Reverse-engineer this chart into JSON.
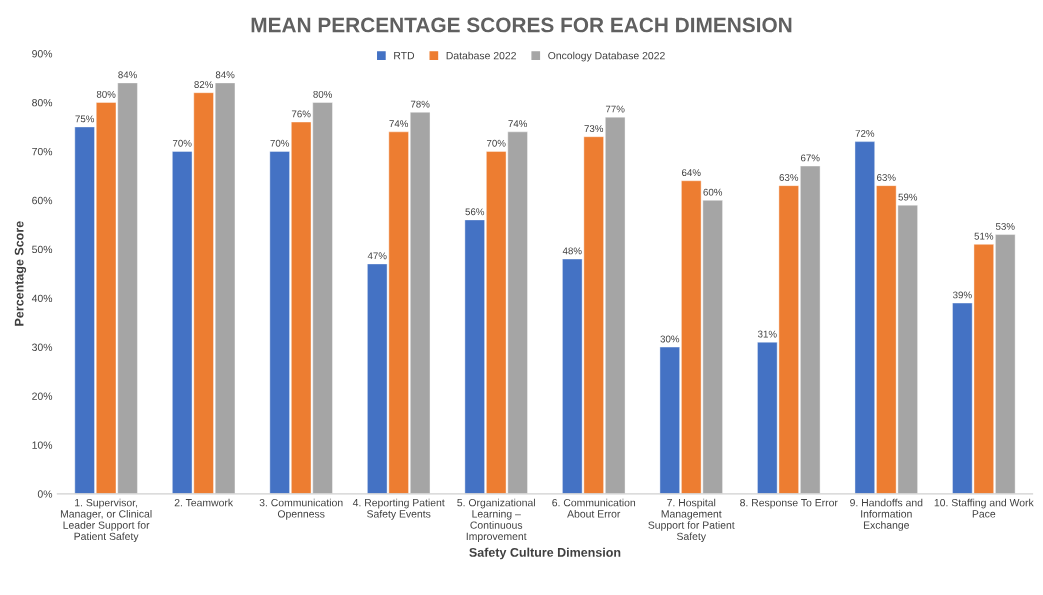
{
  "chart_data": {
    "type": "bar",
    "title": "MEAN PERCENTAGE SCORES FOR EACH DIMENSION",
    "xlabel": "Safety Culture Dimension",
    "ylabel": "Percentage Score",
    "categories": [
      "1. Supervisor,\nManager, or Clinical\nLeader Support for\nPatient Safety",
      "2. Teamwork",
      "3. Communication\nOpenness",
      "4. Reporting Patient\nSafety Events",
      "5. Organizational\nLearning –\nContinuous\nImprovement",
      "6. Communication\nAbout Error",
      "7. Hospital\nManagement\nSupport for Patient\nSafety",
      "8. Response To Error",
      "9. Handoffs and\nInformation\nExchange",
      "10. Staffing and Work\nPace"
    ],
    "series": [
      {
        "name": "RTD",
        "color": "#4472c4",
        "values": [
          75,
          70,
          70,
          47,
          56,
          48,
          30,
          31,
          72,
          39
        ],
        "value_labels": [
          "75%",
          "70%",
          "70%",
          "47%",
          "56%",
          "48%",
          "30%",
          "31%",
          "72%",
          "39%"
        ]
      },
      {
        "name": "Database 2022",
        "color": "#ed7d31",
        "values": [
          80,
          82,
          76,
          74,
          70,
          73,
          64,
          63,
          63,
          51
        ],
        "value_labels": [
          "80%",
          "82%",
          "76%",
          "74%",
          "70%",
          "73%",
          "64%",
          "63%",
          "63%",
          "51%"
        ]
      },
      {
        "name": "Oncology Database 2022",
        "color": "#a5a5a5",
        "values": [
          84,
          84,
          80,
          78,
          74,
          77,
          60,
          67,
          59,
          53
        ],
        "value_labels": [
          "84%",
          "84%",
          "80%",
          "78%",
          "74%",
          "77%",
          "60%",
          "67%",
          "59%",
          "53%"
        ]
      }
    ],
    "ylim": [
      0,
      90
    ],
    "yticks": [
      {
        "value": 0,
        "label": "0%"
      },
      {
        "value": 10,
        "label": "10%"
      },
      {
        "value": 20,
        "label": "20%"
      },
      {
        "value": 30,
        "label": "30%"
      },
      {
        "value": 40,
        "label": "40%"
      },
      {
        "value": 50,
        "label": "50%"
      },
      {
        "value": 60,
        "label": "60%"
      },
      {
        "value": 70,
        "label": "70%"
      },
      {
        "value": 80,
        "label": "80%"
      },
      {
        "value": 90,
        "label": "90%"
      }
    ],
    "legend": "top"
  }
}
